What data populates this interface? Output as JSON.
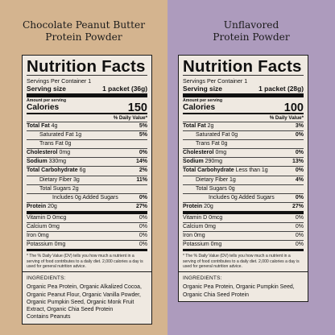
{
  "products": [
    {
      "title_line1": "Chocolate Peanut Butter",
      "title_line2": "Protein Powder",
      "panel_title": "Nutrition Facts",
      "servings_per_container": "Servings Per Container 1",
      "serving_size_label": "Serving size",
      "serving_size_value": "1 packet (36g)",
      "amount_per_serving": "Amount per serving",
      "calories_label": "Calories",
      "calories_value": "150",
      "dv_header": "% Daily Value*",
      "rows": [
        {
          "label": "Total Fat",
          "amount": "4g",
          "dv": "5%"
        },
        {
          "label": "Saturated Fat",
          "amount": "1g",
          "dv": "5%"
        },
        {
          "label": "Trans Fat",
          "amount": "0g",
          "dv": ""
        },
        {
          "label": "Cholesterol",
          "amount": "0mg",
          "dv": "0%"
        },
        {
          "label": "Sodium",
          "amount": "330mg",
          "dv": "14%"
        },
        {
          "label": "Total Carbohydrate",
          "amount": "6g",
          "dv": "2%"
        },
        {
          "label": "Dietary Fiber",
          "amount": "3g",
          "dv": "11%"
        },
        {
          "label": "Total Sugars",
          "amount": "2g",
          "dv": ""
        },
        {
          "label": "Includes 0g Added Sugars",
          "amount": "",
          "dv": "0%"
        },
        {
          "label": "Protein",
          "amount": "20g",
          "dv": "27%"
        },
        {
          "label": "Vitamin D",
          "amount": "0mcg",
          "dv": "0%"
        },
        {
          "label": "Calcium",
          "amount": "0mg",
          "dv": "0%"
        },
        {
          "label": "Iron",
          "amount": "0mg",
          "dv": "0%"
        },
        {
          "label": "Potassium",
          "amount": "0mg",
          "dv": "0%"
        }
      ],
      "footnote": "* The % Daily Value (DV) tells you how much a nutrient in a serving of food contributes to a daily diet. 2,000 calories a day is used for general nutrition advice.",
      "ingredients_heading": "INGREDIENTS:",
      "ingredients_text": "Organic Pea Protein, Organic Alkalized Cocoa, Organic Peanut Flour, Organic Vanilla Powder, Organic Pumpkin Seed, Organic Monk Fruit Extract, Organic Chia Seed Protein",
      "contains": "Contains Peanuts"
    },
    {
      "title_line1": "Unflavored",
      "title_line2": "Protein Powder",
      "panel_title": "Nutrition Facts",
      "servings_per_container": "Servings Per Container 1",
      "serving_size_label": "Serving size",
      "serving_size_value": "1 packet (28g)",
      "amount_per_serving": "Amount per serving",
      "calories_label": "Calories",
      "calories_value": "100",
      "dv_header": "% Daily Value*",
      "rows": [
        {
          "label": "Total Fat",
          "amount": "2g",
          "dv": "3%"
        },
        {
          "label": "Saturated Fat",
          "amount": "0g",
          "dv": "0%"
        },
        {
          "label": "Trans Fat",
          "amount": "0g",
          "dv": ""
        },
        {
          "label": "Cholesterol",
          "amount": "0mg",
          "dv": "0%"
        },
        {
          "label": "Sodium",
          "amount": "290mg",
          "dv": "13%"
        },
        {
          "label": "Total Carbohydrate",
          "amount": "Less than 1g",
          "dv": "0%"
        },
        {
          "label": "Dietary Fiber",
          "amount": "1g",
          "dv": "4%"
        },
        {
          "label": "Total Sugars",
          "amount": "0g",
          "dv": ""
        },
        {
          "label": "Includes 0g Added Sugars",
          "amount": "",
          "dv": "0%"
        },
        {
          "label": "Protein",
          "amount": "20g",
          "dv": "27%"
        },
        {
          "label": "Vitamin D",
          "amount": "0mcg",
          "dv": "0%"
        },
        {
          "label": "Calcium",
          "amount": "0mg",
          "dv": "0%"
        },
        {
          "label": "Iron",
          "amount": "0mg",
          "dv": "0%"
        },
        {
          "label": "Potassium",
          "amount": "0mg",
          "dv": "0%"
        }
      ],
      "footnote": "* The % Daily Value (DV) tells you how much a nutrient in a serving of food contributes to a daily diet. 2,000 calories a day is used for general nutrition advice.",
      "ingredients_heading": "INGREDIENTS:",
      "ingredients_text": "Organic Pea Protein, Organic Pumpkin Seed, Organic Chia Seed Protein",
      "contains": ""
    }
  ],
  "colors": {
    "left_bg": "#d4b48f",
    "right_bg": "#ad9bbd",
    "panel_bg": "#efe9e1"
  }
}
